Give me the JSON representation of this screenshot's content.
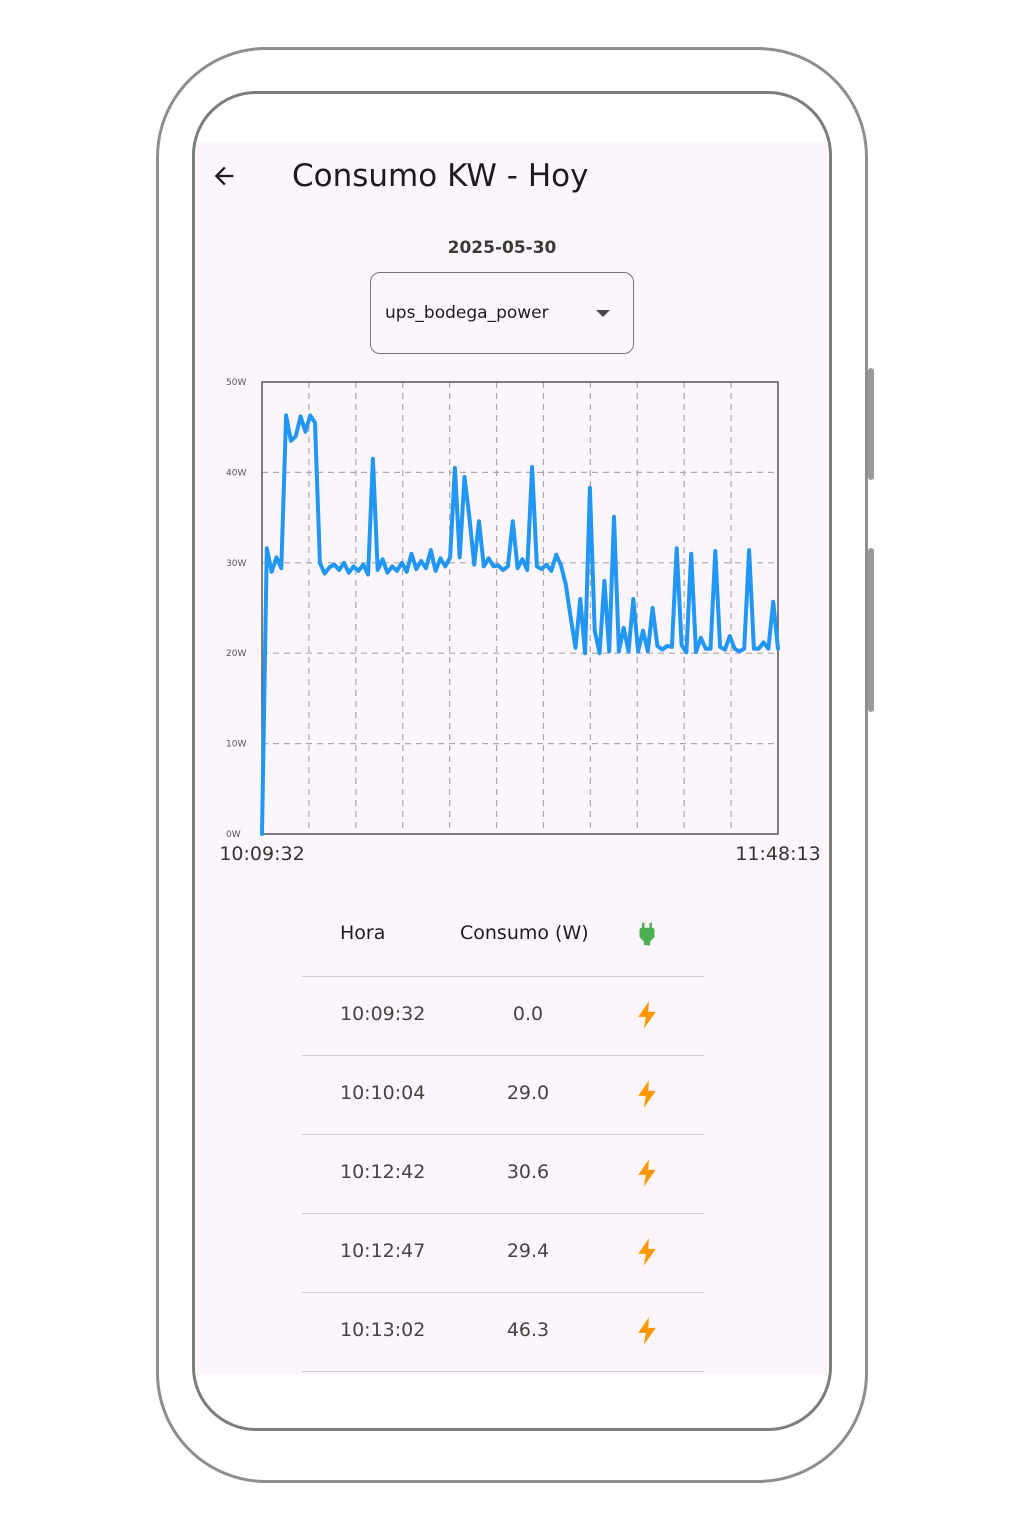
{
  "app": {
    "title": "Consumo KW - Hoy",
    "date": "2025-05-30",
    "sensor_select": {
      "selected": "ups_bodega_power"
    },
    "back_icon": "arrow-left-icon"
  },
  "colors": {
    "line": "#2196f3",
    "plug": "#4caf50",
    "bolt": "#ff9800",
    "background": "#fcf6fc"
  },
  "chart_data": {
    "type": "line",
    "title": "",
    "xlabel": "",
    "ylabel": "",
    "ylim": [
      0,
      50
    ],
    "y_ticks": [
      "0W",
      "10W",
      "20W",
      "30W",
      "40W",
      "50W"
    ],
    "x_tick_labels": [
      "10:09:32",
      "11:48:13"
    ],
    "grid": true,
    "series": [
      {
        "values": [
          0,
          31.6,
          29,
          30.6,
          29.4,
          46.3,
          43.5,
          44,
          46.2,
          44.5,
          46.3,
          45.5,
          30,
          28.8,
          29.5,
          29.8,
          29.2,
          30,
          28.9,
          29.6,
          29.1,
          29.8,
          28.7,
          41.5,
          29.2,
          30.4,
          28.9,
          29.6,
          29.1,
          30,
          29,
          31,
          29.3,
          30.2,
          29.4,
          31.4,
          29.1,
          30.5,
          29.6,
          30.6,
          40.5,
          30.6,
          39.5,
          35,
          29.8,
          34.6,
          29.6,
          30.5,
          29.6,
          29.7,
          29.2,
          29.6,
          34.6,
          29.4,
          30.4,
          29.2,
          40.6,
          29.6,
          29.3,
          29.8,
          29.1,
          30.9,
          29.7,
          27.6,
          24,
          20.6,
          26,
          20,
          38.3,
          22.5,
          20,
          28,
          20.2,
          35.1,
          20.2,
          22.8,
          20.2,
          26,
          20.2,
          22.5,
          20.2,
          25,
          20.8,
          20.4,
          20.8,
          20.7,
          31.6,
          20.9,
          20.1,
          31,
          20.1,
          21.7,
          20.5,
          20.5,
          31.3,
          20.7,
          20.4,
          21.9,
          20.5,
          20.2,
          20.5,
          31.4,
          20.5,
          20.5,
          21.2,
          20.5,
          25.7,
          20.5
        ]
      }
    ]
  },
  "table": {
    "headers": {
      "hora": "Hora",
      "consumo": "Consumo (W)",
      "status_icon": "plug-icon"
    },
    "rows": [
      {
        "hora": "10:09:32",
        "consumo": "0.0",
        "icon": "bolt-icon"
      },
      {
        "hora": "10:10:04",
        "consumo": "29.0",
        "icon": "bolt-icon"
      },
      {
        "hora": "10:12:42",
        "consumo": "30.6",
        "icon": "bolt-icon"
      },
      {
        "hora": "10:12:47",
        "consumo": "29.4",
        "icon": "bolt-icon"
      },
      {
        "hora": "10:13:02",
        "consumo": "46.3",
        "icon": "bolt-icon"
      }
    ]
  }
}
